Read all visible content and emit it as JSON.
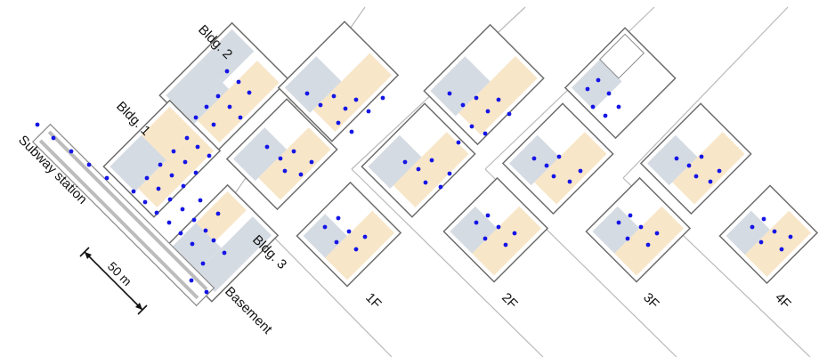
{
  "labels": {
    "bldg1": "Bldg. 1",
    "bldg2": "Bldg. 2",
    "bldg3": "Bldg. 3",
    "subway": "Subway station",
    "basement": "Basement",
    "scale": "50 m"
  },
  "floors": [
    "1F",
    "2F",
    "3F",
    "4F"
  ],
  "colors": {
    "room_gray": "#d5dbe2",
    "room_beige": "#f8e6c8",
    "wall": "#6e6e6e",
    "node": "#1515e6",
    "divider": "#b9b9b9"
  }
}
